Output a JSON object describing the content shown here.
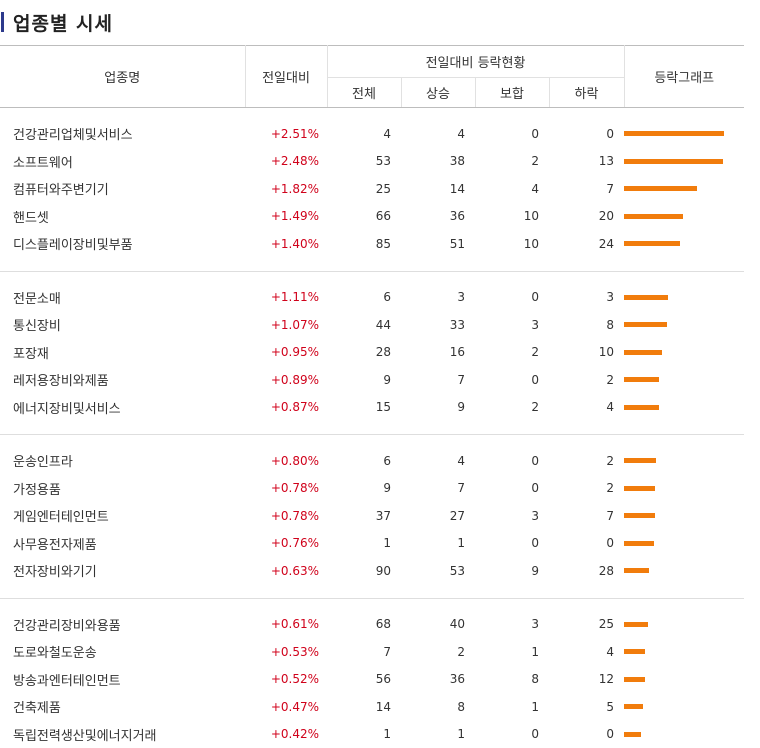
{
  "title": "업종별 시세",
  "header": {
    "col_name": "업종명",
    "col_change": "전일대비",
    "col_status": "전일대비 등락현황",
    "col_total": "전체",
    "col_up": "상승",
    "col_flat": "보합",
    "col_down": "하락",
    "col_graph": "등락그래프"
  },
  "accent_color": "#f17c0c",
  "rate_color": "#d0021b",
  "groups": [
    [
      {
        "name": "건강관리업체및서비스",
        "rate": "+2.51%",
        "total": "4",
        "up": "4",
        "flat": "0",
        "down": "0",
        "pct": 2.51
      },
      {
        "name": "소프트웨어",
        "rate": "+2.48%",
        "total": "53",
        "up": "38",
        "flat": "2",
        "down": "13",
        "pct": 2.48
      },
      {
        "name": "컴퓨터와주변기기",
        "rate": "+1.82%",
        "total": "25",
        "up": "14",
        "flat": "4",
        "down": "7",
        "pct": 1.82
      },
      {
        "name": "핸드셋",
        "rate": "+1.49%",
        "total": "66",
        "up": "36",
        "flat": "10",
        "down": "20",
        "pct": 1.49
      },
      {
        "name": "디스플레이장비및부품",
        "rate": "+1.40%",
        "total": "85",
        "up": "51",
        "flat": "10",
        "down": "24",
        "pct": 1.4
      }
    ],
    [
      {
        "name": "전문소매",
        "rate": "+1.11%",
        "total": "6",
        "up": "3",
        "flat": "0",
        "down": "3",
        "pct": 1.11
      },
      {
        "name": "통신장비",
        "rate": "+1.07%",
        "total": "44",
        "up": "33",
        "flat": "3",
        "down": "8",
        "pct": 1.07
      },
      {
        "name": "포장재",
        "rate": "+0.95%",
        "total": "28",
        "up": "16",
        "flat": "2",
        "down": "10",
        "pct": 0.95
      },
      {
        "name": "레저용장비와제품",
        "rate": "+0.89%",
        "total": "9",
        "up": "7",
        "flat": "0",
        "down": "2",
        "pct": 0.89
      },
      {
        "name": "에너지장비및서비스",
        "rate": "+0.87%",
        "total": "15",
        "up": "9",
        "flat": "2",
        "down": "4",
        "pct": 0.87
      }
    ],
    [
      {
        "name": "운송인프라",
        "rate": "+0.80%",
        "total": "6",
        "up": "4",
        "flat": "0",
        "down": "2",
        "pct": 0.8
      },
      {
        "name": "가정용품",
        "rate": "+0.78%",
        "total": "9",
        "up": "7",
        "flat": "0",
        "down": "2",
        "pct": 0.78
      },
      {
        "name": "게임엔터테인먼트",
        "rate": "+0.78%",
        "total": "37",
        "up": "27",
        "flat": "3",
        "down": "7",
        "pct": 0.78
      },
      {
        "name": "사무용전자제품",
        "rate": "+0.76%",
        "total": "1",
        "up": "1",
        "flat": "0",
        "down": "0",
        "pct": 0.76
      },
      {
        "name": "전자장비와기기",
        "rate": "+0.63%",
        "total": "90",
        "up": "53",
        "flat": "9",
        "down": "28",
        "pct": 0.63
      }
    ],
    [
      {
        "name": "건강관리장비와용품",
        "rate": "+0.61%",
        "total": "68",
        "up": "40",
        "flat": "3",
        "down": "25",
        "pct": 0.61
      },
      {
        "name": "도로와철도운송",
        "rate": "+0.53%",
        "total": "7",
        "up": "2",
        "flat": "1",
        "down": "4",
        "pct": 0.53
      },
      {
        "name": "방송과엔터테인먼트",
        "rate": "+0.52%",
        "total": "56",
        "up": "36",
        "flat": "8",
        "down": "12",
        "pct": 0.52
      },
      {
        "name": "건축제품",
        "rate": "+0.47%",
        "total": "14",
        "up": "8",
        "flat": "1",
        "down": "5",
        "pct": 0.47
      },
      {
        "name": "독립전력생산및에너지거래",
        "rate": "+0.42%",
        "total": "1",
        "up": "1",
        "flat": "0",
        "down": "0",
        "pct": 0.42
      }
    ]
  ]
}
